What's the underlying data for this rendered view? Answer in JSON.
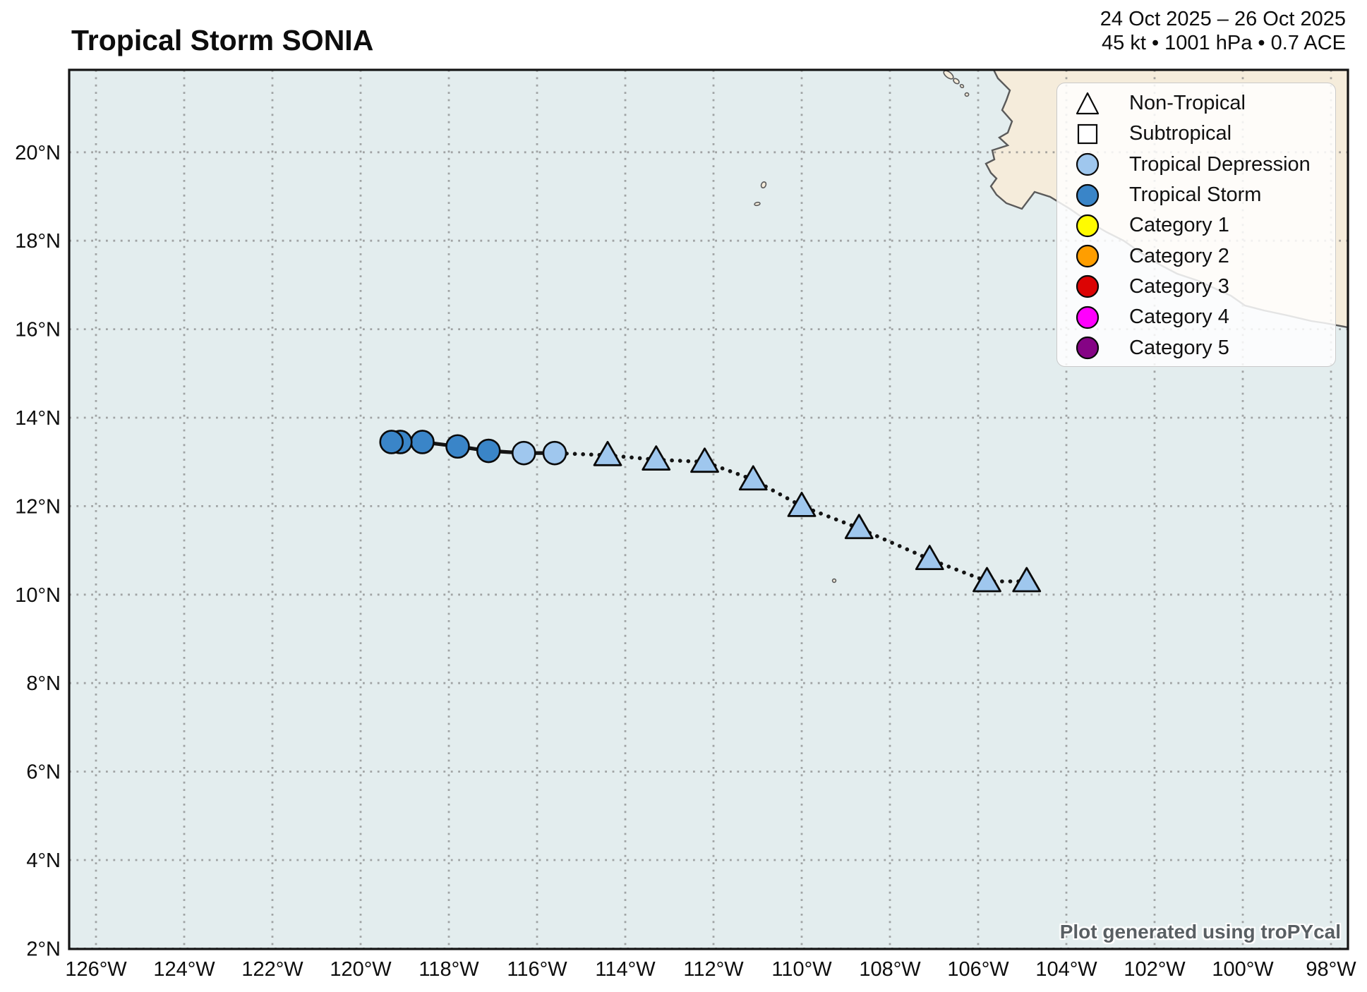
{
  "header": {
    "title": "Tropical Storm SONIA",
    "date_range": "24 Oct 2025 – 26 Oct 2025",
    "stats": "45 kt • 1001 hPa • 0.7 ACE"
  },
  "watermark": "Plot generated using troPYcal",
  "colors": {
    "ocean": "#e3edee",
    "land": "#f5ecdb",
    "coastline": "#5a5a5a",
    "grid": "#7d7d7d",
    "border": "#141414",
    "track_line": "#141414",
    "non_tropical_fill": "#9fc7ee",
    "subtropical_fill": "#ffffff",
    "tropical_depression": "#9fc7ee",
    "tropical_storm": "#3a85c8",
    "category_1": "#fffb00",
    "category_2": "#ff9e00",
    "category_3": "#dc0404",
    "category_4": "#ff00fd",
    "category_5": "#850485"
  },
  "legend": {
    "items": [
      {
        "label": "Non-Tropical",
        "marker": "triangle",
        "fill": "#ffffff"
      },
      {
        "label": "Subtropical",
        "marker": "square",
        "fill": "#ffffff"
      },
      {
        "label": "Tropical Depression",
        "marker": "circle",
        "fill": "#9fc7ee"
      },
      {
        "label": "Tropical Storm",
        "marker": "circle",
        "fill": "#3a85c8"
      },
      {
        "label": "Category 1",
        "marker": "circle",
        "fill": "#fffb00"
      },
      {
        "label": "Category 2",
        "marker": "circle",
        "fill": "#ff9e00"
      },
      {
        "label": "Category 3",
        "marker": "circle",
        "fill": "#dc0404"
      },
      {
        "label": "Category 4",
        "marker": "circle",
        "fill": "#ff00fd"
      },
      {
        "label": "Category 5",
        "marker": "circle",
        "fill": "#850485"
      }
    ]
  },
  "axes": {
    "bottom": [
      {
        "label": "126°W",
        "lon": 126
      },
      {
        "label": "124°W",
        "lon": 124
      },
      {
        "label": "122°W",
        "lon": 122
      },
      {
        "label": "120°W",
        "lon": 120
      },
      {
        "label": "118°W",
        "lon": 118
      },
      {
        "label": "116°W",
        "lon": 116
      },
      {
        "label": "114°W",
        "lon": 114
      },
      {
        "label": "112°W",
        "lon": 112
      },
      {
        "label": "110°W",
        "lon": 110
      },
      {
        "label": "108°W",
        "lon": 108
      },
      {
        "label": "106°W",
        "lon": 106
      },
      {
        "label": "104°W",
        "lon": 104
      },
      {
        "label": "102°W",
        "lon": 102
      },
      {
        "label": "100°W",
        "lon": 100
      },
      {
        "label": "98°W",
        "lon": 98
      }
    ],
    "left": [
      {
        "label": "20°N",
        "lat": 20
      },
      {
        "label": "18°N",
        "lat": 18
      },
      {
        "label": "16°N",
        "lat": 16
      },
      {
        "label": "14°N",
        "lat": 14
      },
      {
        "label": "12°N",
        "lat": 12
      },
      {
        "label": "10°N",
        "lat": 10
      },
      {
        "label": "8°N",
        "lat": 8
      },
      {
        "label": "6°N",
        "lat": 6
      },
      {
        "label": "4°N",
        "lat": 4
      },
      {
        "label": "2°N",
        "lat": 2
      }
    ]
  },
  "chart_data": {
    "type": "scatter",
    "subtype": "tropical-cyclone-track-map",
    "title": "Tropical Storm SONIA",
    "storm_peak": {
      "wind_kt": 45,
      "pressure_hpa": 1001,
      "ace": 0.7
    },
    "map_extent": {
      "lon_w": [
        126.6,
        97.6
      ],
      "lat_n": [
        2.0,
        22.1
      ]
    },
    "line_styles": {
      "non_tropical": "dotted",
      "tropical": "solid"
    },
    "points": [
      {
        "lon_w": 104.9,
        "lat_n": 10.3,
        "status": "Non-Tropical"
      },
      {
        "lon_w": 105.8,
        "lat_n": 10.3,
        "status": "Non-Tropical"
      },
      {
        "lon_w": 107.1,
        "lat_n": 10.8,
        "status": "Non-Tropical"
      },
      {
        "lon_w": 108.7,
        "lat_n": 11.5,
        "status": "Non-Tropical"
      },
      {
        "lon_w": 110.0,
        "lat_n": 12.0,
        "status": "Non-Tropical"
      },
      {
        "lon_w": 111.1,
        "lat_n": 12.6,
        "status": "Non-Tropical"
      },
      {
        "lon_w": 112.2,
        "lat_n": 13.0,
        "status": "Non-Tropical"
      },
      {
        "lon_w": 113.3,
        "lat_n": 13.05,
        "status": "Non-Tropical"
      },
      {
        "lon_w": 114.4,
        "lat_n": 13.15,
        "status": "Non-Tropical"
      },
      {
        "lon_w": 115.6,
        "lat_n": 13.2,
        "status": "Tropical Depression"
      },
      {
        "lon_w": 116.3,
        "lat_n": 13.2,
        "status": "Tropical Depression"
      },
      {
        "lon_w": 117.1,
        "lat_n": 13.25,
        "status": "Tropical Storm"
      },
      {
        "lon_w": 117.8,
        "lat_n": 13.35,
        "status": "Tropical Storm"
      },
      {
        "lon_w": 118.6,
        "lat_n": 13.45,
        "status": "Tropical Storm"
      },
      {
        "lon_w": 119.1,
        "lat_n": 13.45,
        "status": "Tropical Storm"
      },
      {
        "lon_w": 119.3,
        "lat_n": 13.45,
        "status": "Tropical Storm"
      }
    ]
  }
}
